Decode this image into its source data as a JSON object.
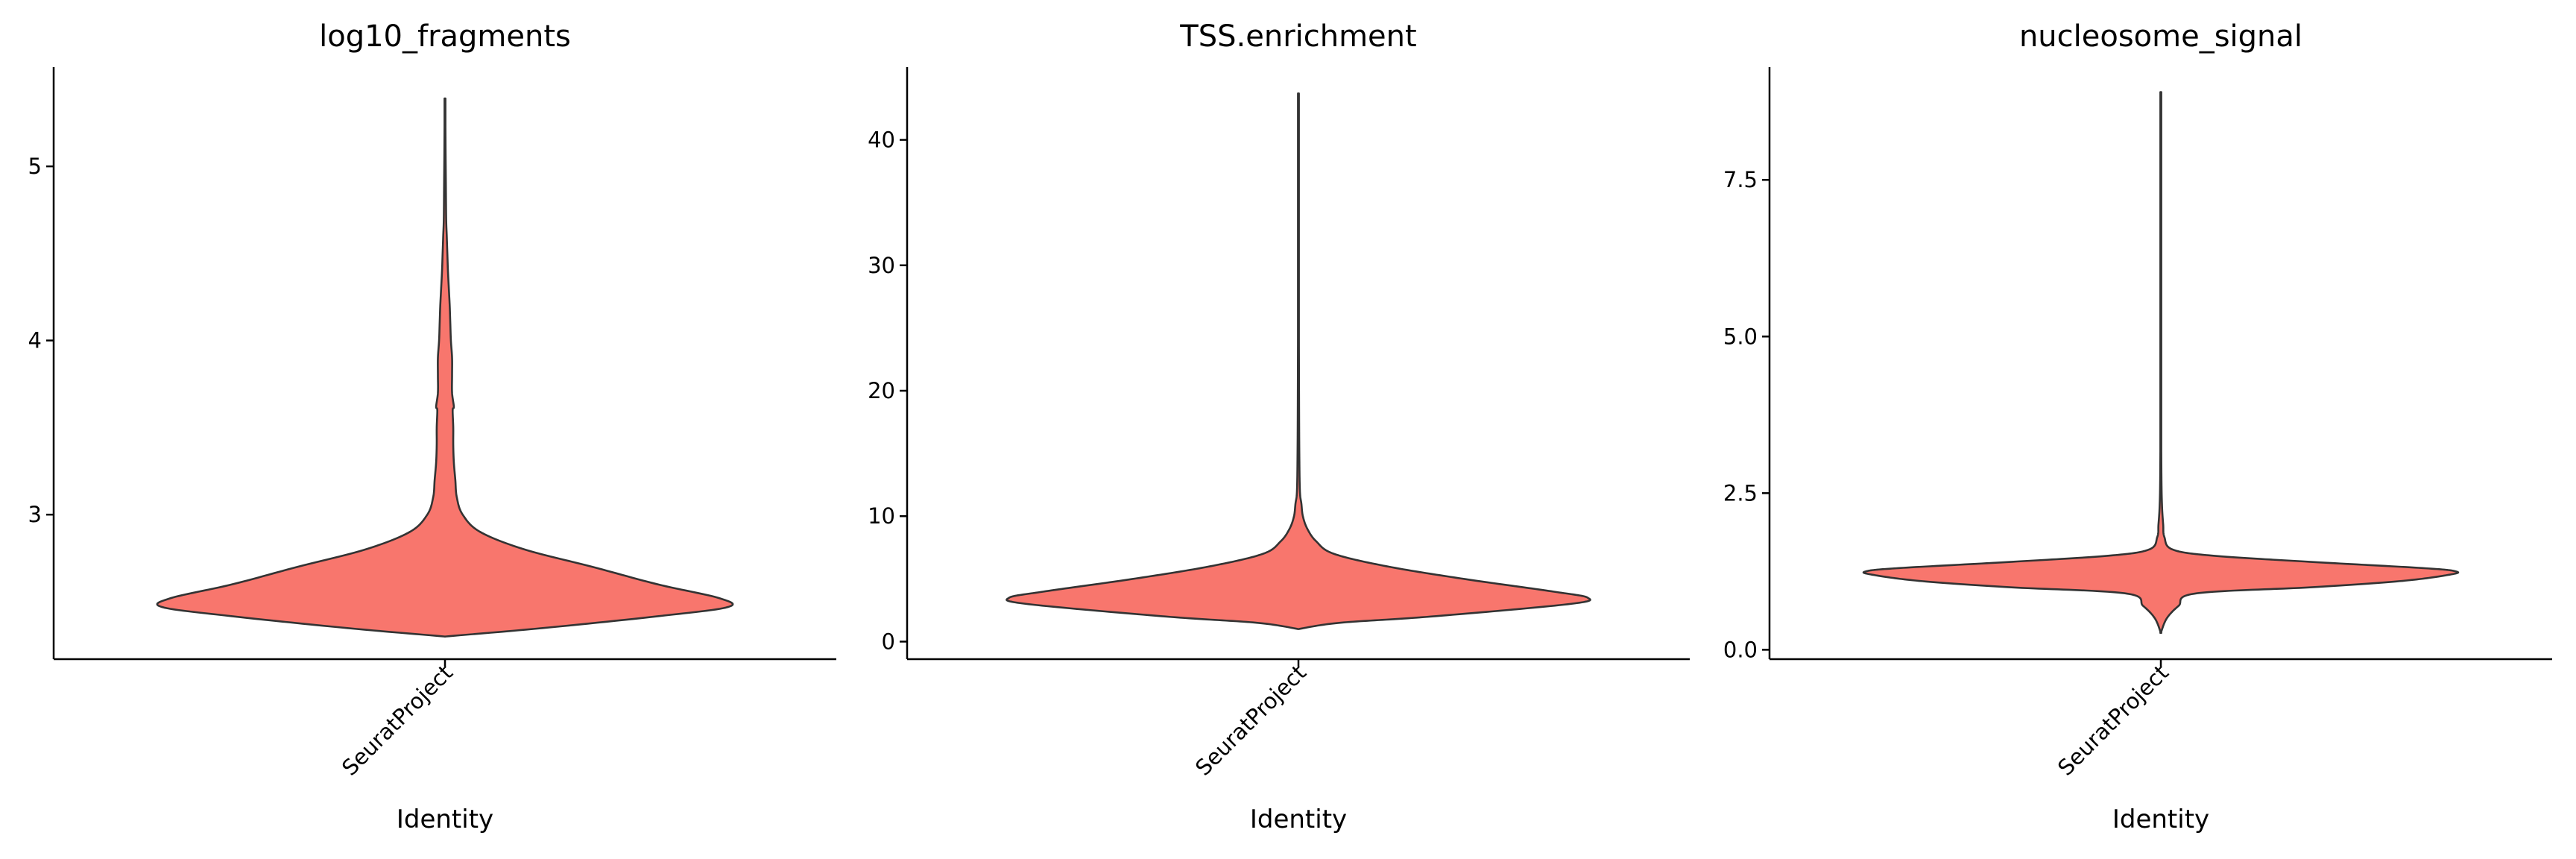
{
  "chart_data": [
    {
      "type": "violin",
      "title": "log10_fragments",
      "xlabel": "Identity",
      "ylabel": "",
      "categories": [
        "SeuratProject"
      ],
      "ylim": [
        2.17,
        5.57
      ],
      "yticks": [
        3,
        4,
        5
      ],
      "ytick_labels": [
        "3",
        "4",
        "5"
      ],
      "fill_color": "#F8766D",
      "grid": false,
      "legend": "none",
      "series": [
        {
          "values": [
            2.3,
            2.35,
            2.42,
            2.47,
            2.52,
            2.6,
            2.7,
            2.8,
            2.9,
            3.0,
            3.1,
            3.2,
            3.3,
            3.4,
            3.5,
            3.6,
            3.62,
            3.7,
            3.8,
            3.9,
            4.0,
            4.1,
            4.2,
            4.3,
            4.4,
            4.5,
            4.6,
            4.7,
            4.9,
            5.1,
            5.39
          ],
          "density": [
            0.0,
            0.34,
            0.74,
            0.96,
            0.93,
            0.72,
            0.5,
            0.27,
            0.12,
            0.06,
            0.04,
            0.035,
            0.03,
            0.028,
            0.028,
            0.026,
            0.03,
            0.024,
            0.024,
            0.024,
            0.02,
            0.018,
            0.016,
            0.013,
            0.01,
            0.008,
            0.006,
            0.004,
            0.003,
            0.002,
            0.001
          ]
        }
      ]
    },
    {
      "type": "violin",
      "title": "TSS.enrichment",
      "xlabel": "Identity",
      "ylabel": "",
      "categories": [
        "SeuratProject"
      ],
      "ylim": [
        -1.4,
        45.8
      ],
      "yticks": [
        0,
        10,
        20,
        30,
        40
      ],
      "ytick_labels": [
        "0",
        "10",
        "20",
        "30",
        "40"
      ],
      "fill_color": "#F8766D",
      "grid": false,
      "legend": "none",
      "series": [
        {
          "values": [
            1.0,
            1.5,
            2.0,
            3.0,
            3.5,
            4.0,
            5.0,
            6.0,
            7.0,
            8.0,
            9.0,
            10.0,
            11.0,
            12.0,
            15.0,
            20.0,
            30.0,
            43.7
          ],
          "density": [
            0.0,
            0.14,
            0.45,
            0.92,
            0.98,
            0.86,
            0.56,
            0.3,
            0.12,
            0.06,
            0.03,
            0.015,
            0.01,
            0.005,
            0.003,
            0.002,
            0.001,
            0.0005
          ]
        }
      ]
    },
    {
      "type": "violin",
      "title": "nucleosome_signal",
      "xlabel": "Identity",
      "ylabel": "",
      "categories": [
        "SeuratProject"
      ],
      "ylim": [
        -0.15,
        9.3
      ],
      "yticks": [
        0,
        2.5,
        5,
        7.5
      ],
      "ytick_labels": [
        "0.0",
        "2.5",
        "5.0",
        "7.5"
      ],
      "fill_color": "#F8766D",
      "grid": false,
      "legend": "none",
      "series": [
        {
          "values": [
            0.27,
            0.5,
            0.7,
            0.9,
            1.0,
            1.1,
            1.2,
            1.25,
            1.3,
            1.4,
            1.5,
            1.6,
            1.8,
            2.0,
            2.3,
            2.8,
            4.0,
            6.0,
            8.9
          ],
          "density": [
            0.0,
            0.02,
            0.06,
            0.12,
            0.52,
            0.82,
            0.98,
            1.0,
            0.9,
            0.52,
            0.18,
            0.04,
            0.012,
            0.008,
            0.004,
            0.002,
            0.001,
            0.0006,
            0.0004
          ]
        }
      ]
    }
  ]
}
